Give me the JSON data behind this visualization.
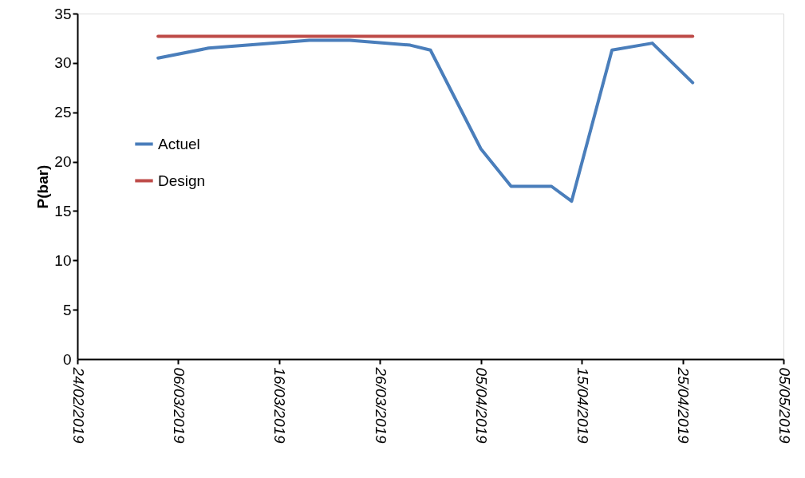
{
  "chart_data": {
    "type": "line",
    "ylabel": "P(bar)",
    "x": [
      "2019-03-04",
      "2019-03-09",
      "2019-03-19",
      "2019-03-23",
      "2019-03-29",
      "2019-03-31",
      "2019-04-05",
      "2019-04-08",
      "2019-04-12",
      "2019-04-14",
      "2019-04-18",
      "2019-04-22",
      "2019-04-26"
    ],
    "series": [
      {
        "name": "Actuel",
        "color": "#4a7ebb",
        "values": [
          30.5,
          31.5,
          32.3,
          32.3,
          31.8,
          31.3,
          21.3,
          17.5,
          17.5,
          16.0,
          31.3,
          32.0,
          28.0
        ]
      },
      {
        "name": "Design",
        "color": "#be4b48",
        "values": [
          32.7,
          32.7,
          32.7,
          32.7,
          32.7,
          32.7,
          32.7,
          32.7,
          32.7,
          32.7,
          32.7,
          32.7,
          32.7
        ]
      }
    ],
    "xlim": [
      "2019-02-24",
      "2019-05-05"
    ],
    "xticks": [
      {
        "value": "2019-02-24",
        "label": "24/02/2019"
      },
      {
        "value": "2019-03-06",
        "label": "06/03/2019"
      },
      {
        "value": "2019-03-16",
        "label": "16/03/2019"
      },
      {
        "value": "2019-03-26",
        "label": "26/03/2019"
      },
      {
        "value": "2019-04-05",
        "label": "05/04/2019"
      },
      {
        "value": "2019-04-15",
        "label": "15/04/2019"
      },
      {
        "value": "2019-04-25",
        "label": "25/04/2019"
      },
      {
        "value": "2019-05-05",
        "label": "05/05/2019"
      }
    ],
    "ylim": [
      0,
      35
    ],
    "yticks": [
      0,
      5,
      10,
      15,
      20,
      25,
      30,
      35
    ],
    "grid": false,
    "legend": "left",
    "marker": "none",
    "line_style": "solid"
  }
}
